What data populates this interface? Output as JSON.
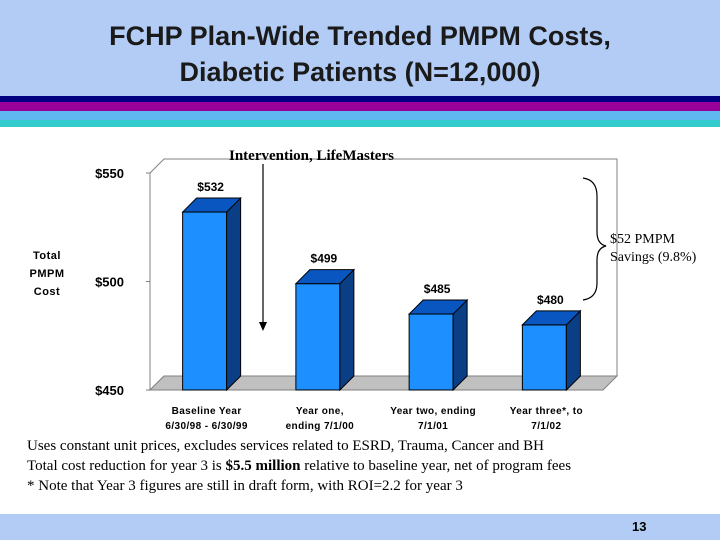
{
  "slide": {
    "title_line1": "FCHP Plan-Wide Trended PMPM Costs,",
    "title_line2": "Diabetic Patients (N=12,000)",
    "page_number": "13",
    "colors": {
      "header_bg": "#b3ccf5",
      "stripe_navy": "#000080",
      "stripe_magenta": "#990099",
      "stripe_light": "#5fb8f0",
      "stripe_cyan": "#33cccc",
      "bar_front": "#1e8fff",
      "bar_side": "#0a3f86",
      "bar_top": "#0a56c0"
    }
  },
  "chart_data": {
    "type": "bar",
    "title": "",
    "ylabel": "Total PMPM Cost",
    "ylabel_lines": [
      "Total",
      "PMPM",
      "Cost"
    ],
    "ylim": [
      450,
      550
    ],
    "yticks": [
      550,
      500,
      450
    ],
    "ytick_labels": [
      "$550",
      "$500",
      "$450"
    ],
    "categories": [
      [
        "Baseline Year",
        "6/30/98 - 6/30/99"
      ],
      [
        "Year one,",
        "ending 7/1/00"
      ],
      [
        "Year two, ending",
        "7/1/01"
      ],
      [
        "Year three*, to",
        "7/1/02"
      ]
    ],
    "values": [
      532,
      499,
      485,
      480
    ],
    "value_labels": [
      "$532",
      "$499",
      "$485",
      "$480"
    ],
    "annotations": {
      "intervention": "Intervention, LifeMasters",
      "savings_line1": "$52 PMPM",
      "savings_line2": "Savings (9.8%)"
    }
  },
  "notes": [
    "Uses constant  unit prices,  excludes services related to ESRD, Trauma, Cancer and BH",
    "Total cost reduction for year 3 is $5.5 million relative to baseline year, net of program fees",
    "* Note that Year 3 figures are still in draft form, with ROI=2.2 for year 3"
  ]
}
